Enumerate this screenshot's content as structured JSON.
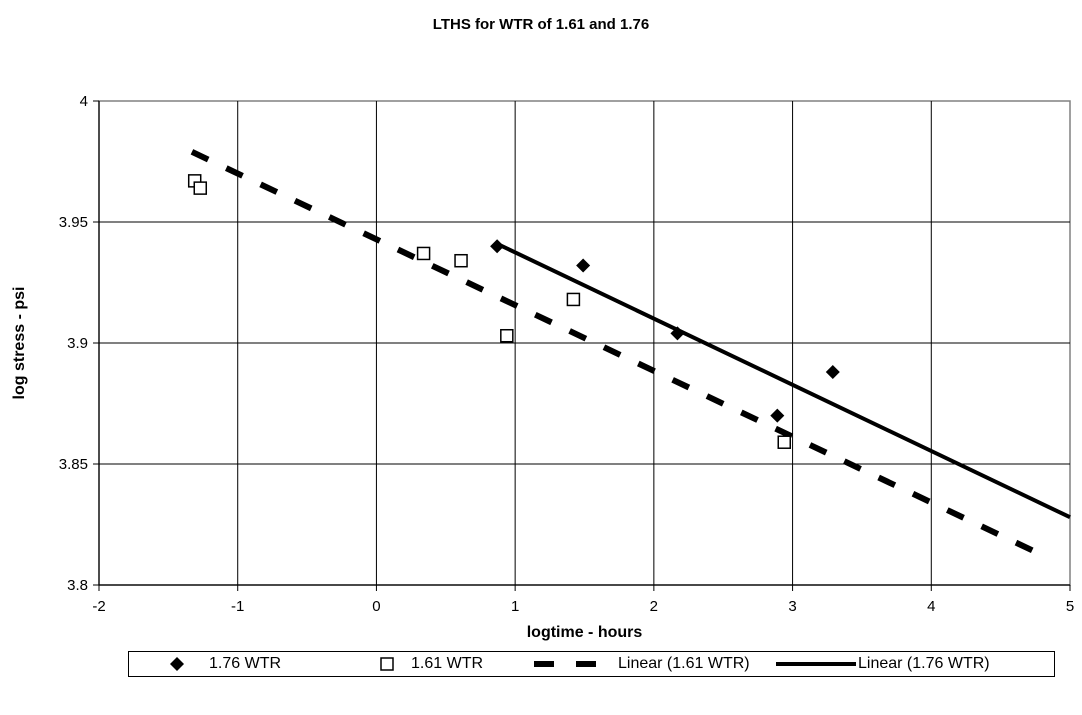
{
  "chart_data": {
    "type": "scatter",
    "title": "LTHS for WTR of 1.61 and 1.76",
    "xlabel": "logtime - hours",
    "ylabel": "log stress - psi",
    "xlim": [
      -2,
      5
    ],
    "ylim": [
      3.8,
      4
    ],
    "x_ticks": [
      -2,
      -1,
      0,
      1,
      2,
      3,
      4,
      5
    ],
    "y_ticks": [
      3.8,
      3.85,
      3.9,
      3.95,
      4
    ],
    "x_tick_labels": [
      "-2",
      "-1",
      "0",
      "1",
      "2",
      "3",
      "4",
      "5"
    ],
    "y_tick_labels": [
      "3.8",
      "3.85",
      "3.9",
      "3.95",
      "4"
    ],
    "grid": true,
    "legend_position": "bottom",
    "series": [
      {
        "name": "1.76 WTR",
        "kind": "points",
        "marker": "diamond",
        "color": "#000000",
        "x": [
          0.87,
          1.49,
          2.17,
          2.89,
          3.29
        ],
        "y": [
          3.94,
          3.932,
          3.904,
          3.87,
          3.888
        ]
      },
      {
        "name": "1.61 WTR",
        "kind": "points",
        "marker": "square-open",
        "color": "#000000",
        "x": [
          -1.31,
          -1.27,
          0.34,
          0.61,
          0.94,
          1.42,
          2.94
        ],
        "y": [
          3.967,
          3.964,
          3.937,
          3.934,
          3.903,
          3.918,
          3.859
        ]
      },
      {
        "name": "Linear (1.61 WTR)",
        "kind": "line",
        "style": "dashed",
        "color": "#000000",
        "x": [
          -1.33,
          4.85
        ],
        "y": [
          3.979,
          3.811
        ]
      },
      {
        "name": "Linear (1.76 WTR)",
        "kind": "line",
        "style": "solid",
        "color": "#000000",
        "x": [
          0.87,
          5.0
        ],
        "y": [
          3.941,
          3.828
        ]
      }
    ]
  }
}
